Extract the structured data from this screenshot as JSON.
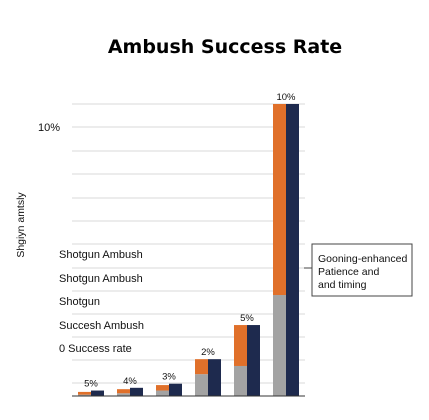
{
  "colors": {
    "orange": "#e0702a",
    "gray": "#a3a3a3",
    "navy": "#1e2a4e",
    "grid": "#d9d9d9",
    "axis": "#333333",
    "annotation_border": "#444444"
  },
  "chart_data": {
    "type": "bar",
    "title": "Ambush Success Rate",
    "ylabel": "Shgiyn amtsly",
    "xlabel": "",
    "y_tick_top": "10%",
    "left_labels": [
      "Shotgun Ambush",
      "Shotgun Ambush",
      "Shotgun",
      "Succesh Ambush",
      "0 Success rate"
    ],
    "ylim": [
      0,
      10.8
    ],
    "grid": true,
    "bars": [
      {
        "label": "5%",
        "gray": 0.05,
        "orange": 0.1,
        "navy": 0.2
      },
      {
        "label": "4%",
        "gray": 0.1,
        "orange": 0.15,
        "navy": 0.3
      },
      {
        "label": "3%",
        "gray": 0.2,
        "orange": 0.2,
        "navy": 0.45
      },
      {
        "label": "2%",
        "gray": 0.8,
        "orange": 0.55,
        "navy": 1.35
      },
      {
        "label": "5%",
        "gray": 1.1,
        "orange": 1.5,
        "navy": 2.6
      },
      {
        "label": "10%",
        "gray": 3.7,
        "orange": 7.0,
        "navy": 10.7
      }
    ],
    "annotation": {
      "lines": [
        "Gooning-enhanced",
        "Patience and",
        "and timing"
      ]
    }
  }
}
